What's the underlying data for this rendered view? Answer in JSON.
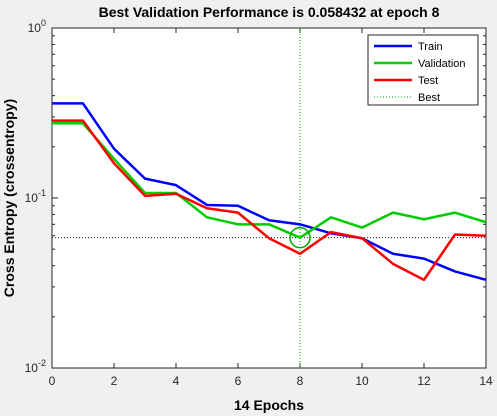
{
  "chart_data": {
    "type": "line",
    "title": "Best Validation Performance is 0.058432 at epoch 8",
    "xlabel": "14 Epochs",
    "ylabel": "Cross Entropy  (crossentropy)",
    "xlim": [
      0,
      14
    ],
    "ylim": [
      0.01,
      1
    ],
    "yscale": "log",
    "xticks": [
      0,
      2,
      4,
      6,
      8,
      10,
      12,
      14
    ],
    "yticks": [
      {
        "value": 0.01,
        "base": "10",
        "exp": "-2"
      },
      {
        "value": 0.1,
        "base": "10",
        "exp": "-1"
      },
      {
        "value": 1,
        "base": "10",
        "exp": "0"
      }
    ],
    "grid": false,
    "legend_position": "top-right",
    "x": [
      0,
      1,
      2,
      3,
      4,
      5,
      6,
      7,
      8,
      9,
      10,
      11,
      12,
      13,
      14
    ],
    "series": [
      {
        "name": "Train",
        "color": "#0000ff",
        "style": "solid",
        "values": [
          0.36,
          0.36,
          0.195,
          0.13,
          0.119,
          0.091,
          0.09,
          0.074,
          0.07,
          0.062,
          0.058,
          0.047,
          0.044,
          0.037,
          0.033
        ]
      },
      {
        "name": "Validation",
        "color": "#00cc00",
        "style": "solid",
        "values": [
          0.275,
          0.275,
          0.17,
          0.107,
          0.107,
          0.077,
          0.07,
          0.07,
          0.058432,
          0.077,
          0.067,
          0.082,
          0.075,
          0.082,
          0.072
        ]
      },
      {
        "name": "Test",
        "color": "#ff0000",
        "style": "solid",
        "values": [
          0.285,
          0.285,
          0.16,
          0.103,
          0.106,
          0.087,
          0.082,
          0.058,
          0.047,
          0.063,
          0.058,
          0.041,
          0.033,
          0.061,
          0.06
        ]
      }
    ],
    "best": {
      "name": "Best",
      "epoch": 8,
      "value": 0.058432,
      "color": "#00aa00",
      "style": "dotted"
    }
  }
}
